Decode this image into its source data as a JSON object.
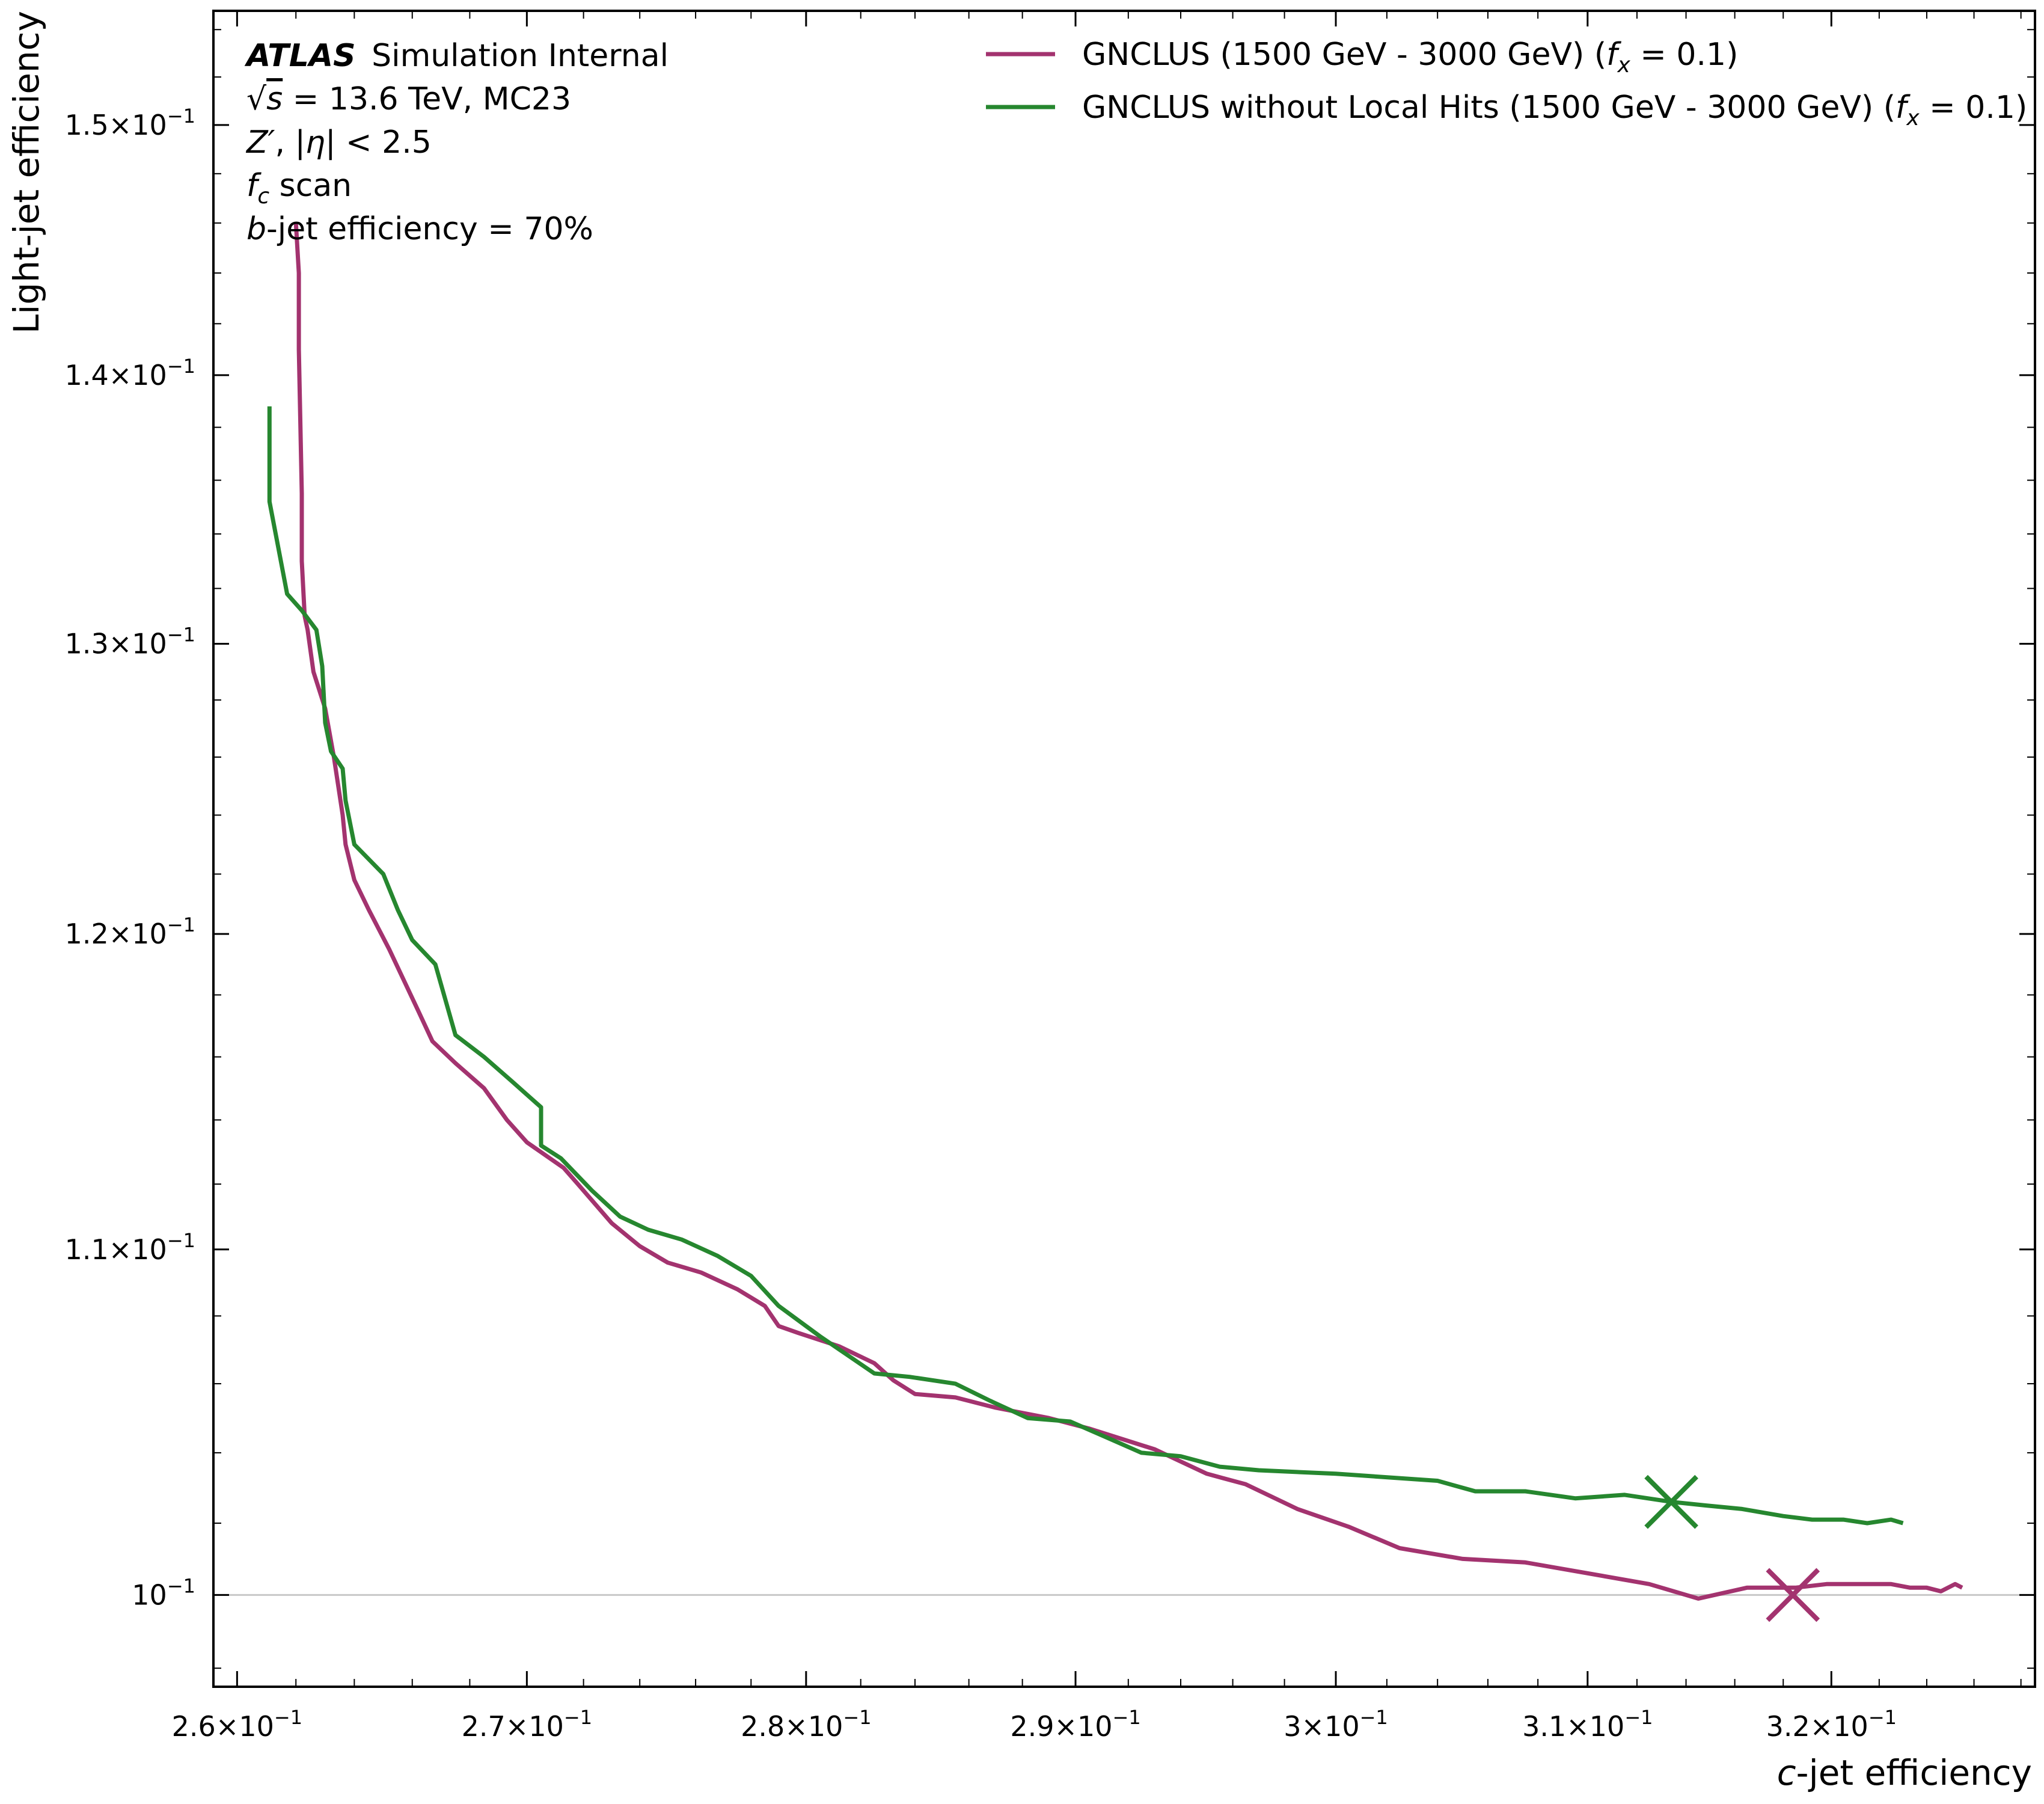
{
  "chart_data": {
    "type": "line",
    "xlabel": "c-jet efficiency",
    "ylabel": "Light-jet efficiency",
    "xscale": "log",
    "yscale": "log",
    "xlim": [
      0.2592,
      0.3286
    ],
    "ylim": [
      0.0975,
      0.1548
    ],
    "grid": false,
    "reference_line_y": 0.1,
    "legend_placement": "top-right",
    "xticks": [
      {
        "value": 0.26,
        "label": "2.6×10",
        "exp": "−1"
      },
      {
        "value": 0.27,
        "label": "2.7×10",
        "exp": "−1"
      },
      {
        "value": 0.28,
        "label": "2.8×10",
        "exp": "−1"
      },
      {
        "value": 0.29,
        "label": "2.9×10",
        "exp": "−1"
      },
      {
        "value": 0.3,
        "label": "3×10",
        "exp": "−1"
      },
      {
        "value": 0.31,
        "label": "3.1×10",
        "exp": "−1"
      },
      {
        "value": 0.32,
        "label": "3.2×10",
        "exp": "−1"
      }
    ],
    "yticks": [
      {
        "value": 0.1,
        "label": "10",
        "exp": "−1"
      },
      {
        "value": 0.11,
        "label": "1.1×10",
        "exp": "−1"
      },
      {
        "value": 0.12,
        "label": "1.2×10",
        "exp": "−1"
      },
      {
        "value": 0.13,
        "label": "1.3×10",
        "exp": "−1"
      },
      {
        "value": 0.14,
        "label": "1.4×10",
        "exp": "−1"
      },
      {
        "value": 0.15,
        "label": "1.5×10",
        "exp": "−1"
      }
    ],
    "annotations": {
      "atlas": "ATLAS",
      "simulation": "Simulation Internal",
      "energy": "√s = 13.6 TeV, MC23",
      "sample": "Z′, |η| < 2.5",
      "scan": "f_c scan",
      "wp": "b-jet efficiency = 70%"
    },
    "series": [
      {
        "name": "GNCLUS (1500 GeV - 3000 GeV) (f_x = 0.1)",
        "color": "#a3336f",
        "marker": {
          "x": 0.3184,
          "y": 0.1
        },
        "points": [
          [
            0.262,
            0.146
          ],
          [
            0.2621,
            0.144
          ],
          [
            0.2621,
            0.141
          ],
          [
            0.2622,
            0.1355
          ],
          [
            0.2622,
            0.133
          ],
          [
            0.2623,
            0.131
          ],
          [
            0.2624,
            0.1305
          ],
          [
            0.2626,
            0.129
          ],
          [
            0.263,
            0.1277
          ],
          [
            0.2633,
            0.126
          ],
          [
            0.2636,
            0.124
          ],
          [
            0.2637,
            0.123
          ],
          [
            0.264,
            0.1218
          ],
          [
            0.2645,
            0.1208
          ],
          [
            0.2652,
            0.1195
          ],
          [
            0.2662,
            0.1175
          ],
          [
            0.2667,
            0.1165
          ],
          [
            0.2675,
            0.1158
          ],
          [
            0.2685,
            0.115
          ],
          [
            0.2693,
            0.114
          ],
          [
            0.27,
            0.1133
          ],
          [
            0.2713,
            0.1125
          ],
          [
            0.2718,
            0.112
          ],
          [
            0.273,
            0.1108
          ],
          [
            0.274,
            0.1101
          ],
          [
            0.275,
            0.1096
          ],
          [
            0.2762,
            0.1093
          ],
          [
            0.2775,
            0.1088
          ],
          [
            0.2785,
            0.1083
          ],
          [
            0.279,
            0.1077
          ],
          [
            0.2797,
            0.1075
          ],
          [
            0.2812,
            0.1071
          ],
          [
            0.2825,
            0.1066
          ],
          [
            0.2832,
            0.1061
          ],
          [
            0.284,
            0.1057
          ],
          [
            0.2855,
            0.1056
          ],
          [
            0.287,
            0.1053
          ],
          [
            0.289,
            0.105
          ],
          [
            0.2905,
            0.1047
          ],
          [
            0.293,
            0.1041
          ],
          [
            0.295,
            0.1034
          ],
          [
            0.2965,
            0.1031
          ],
          [
            0.2985,
            0.1024
          ],
          [
            0.3005,
            0.1019
          ],
          [
            0.3025,
            0.1013
          ],
          [
            0.305,
            0.101
          ],
          [
            0.3075,
            0.1009
          ],
          [
            0.31,
            0.1006
          ],
          [
            0.3125,
            0.1003
          ],
          [
            0.3145,
            0.0999
          ],
          [
            0.3165,
            0.1002
          ],
          [
            0.3185,
            0.1002
          ],
          [
            0.3198,
            0.1003
          ],
          [
            0.3212,
            0.1003
          ],
          [
            0.3225,
            0.1003
          ],
          [
            0.3233,
            0.1002
          ],
          [
            0.324,
            0.1002
          ],
          [
            0.3246,
            0.1001
          ],
          [
            0.3252,
            0.1003
          ],
          [
            0.3255,
            0.1002
          ]
        ]
      },
      {
        "name": "GNCLUS without Local Hits (1500 GeV - 3000 GeV) (f_x = 0.1)",
        "color": "#26872f",
        "marker": {
          "x": 0.3134,
          "y": 0.1026
        },
        "points": [
          [
            0.2611,
            0.1388
          ],
          [
            0.2611,
            0.137
          ],
          [
            0.2611,
            0.1352
          ],
          [
            0.2614,
            0.1335
          ],
          [
            0.2617,
            0.1318
          ],
          [
            0.2622,
            0.1312
          ],
          [
            0.2627,
            0.1305
          ],
          [
            0.2629,
            0.1292
          ],
          [
            0.263,
            0.1272
          ],
          [
            0.2632,
            0.1262
          ],
          [
            0.2636,
            0.1256
          ],
          [
            0.2637,
            0.1245
          ],
          [
            0.264,
            0.123
          ],
          [
            0.265,
            0.122
          ],
          [
            0.2655,
            0.1208
          ],
          [
            0.266,
            0.1198
          ],
          [
            0.2668,
            0.119
          ],
          [
            0.2675,
            0.1167
          ],
          [
            0.2685,
            0.116
          ],
          [
            0.2695,
            0.1152
          ],
          [
            0.2705,
            0.1144
          ],
          [
            0.2705,
            0.1132
          ],
          [
            0.2712,
            0.1128
          ],
          [
            0.2723,
            0.1118
          ],
          [
            0.2733,
            0.111
          ],
          [
            0.2743,
            0.1106
          ],
          [
            0.2755,
            0.1103
          ],
          [
            0.2768,
            0.1098
          ],
          [
            0.278,
            0.1092
          ],
          [
            0.279,
            0.1083
          ],
          [
            0.2805,
            0.1074
          ],
          [
            0.2825,
            0.1063
          ],
          [
            0.2838,
            0.1062
          ],
          [
            0.2855,
            0.106
          ],
          [
            0.2868,
            0.1055
          ],
          [
            0.2882,
            0.105
          ],
          [
            0.2898,
            0.1049
          ],
          [
            0.291,
            0.1045
          ],
          [
            0.2925,
            0.104
          ],
          [
            0.294,
            0.1039
          ],
          [
            0.2955,
            0.1036
          ],
          [
            0.297,
            0.1035
          ],
          [
            0.3,
            0.1034
          ],
          [
            0.304,
            0.1032
          ],
          [
            0.3055,
            0.1029
          ],
          [
            0.3075,
            0.1029
          ],
          [
            0.3095,
            0.1027
          ],
          [
            0.3115,
            0.1028
          ],
          [
            0.3134,
            0.1026
          ],
          [
            0.3148,
            0.1025
          ],
          [
            0.3163,
            0.1024
          ],
          [
            0.318,
            0.1022
          ],
          [
            0.3192,
            0.1021
          ],
          [
            0.3205,
            0.1021
          ],
          [
            0.3215,
            0.102
          ],
          [
            0.3225,
            0.1021
          ],
          [
            0.323,
            0.102
          ]
        ]
      }
    ]
  }
}
